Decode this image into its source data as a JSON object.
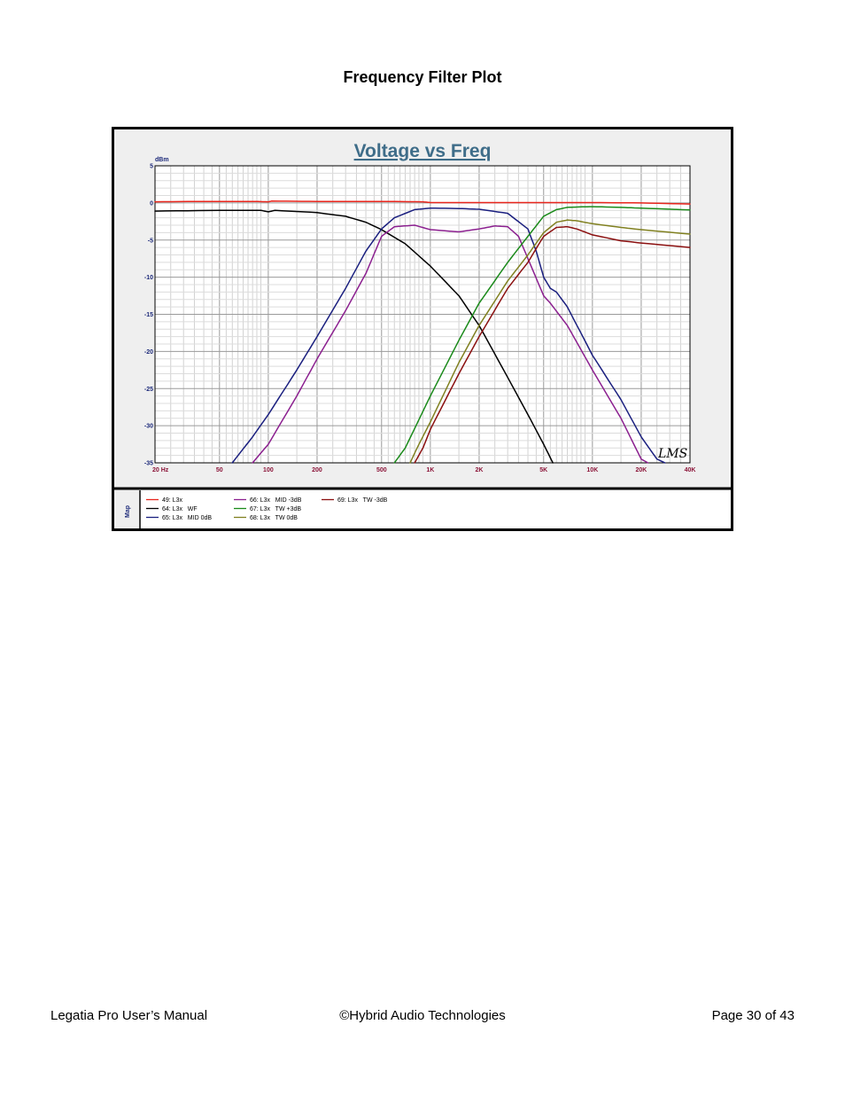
{
  "page": {
    "heading": "Frequency Filter Plot",
    "footer_left": "Legatia Pro User’s Manual",
    "footer_center": "©Hybrid Audio Technologies",
    "footer_right": "Page 30 of 43"
  },
  "chart_data": {
    "type": "line",
    "title": "Voltage vs Freq",
    "ylabel": "dBm",
    "xlabel": "",
    "x_scale": "log",
    "xlim": [
      20,
      40000
    ],
    "ylim": [
      -35,
      5
    ],
    "grid": true,
    "x_ticks": [
      {
        "value": 20,
        "label": "20  Hz"
      },
      {
        "value": 50,
        "label": "50"
      },
      {
        "value": 100,
        "label": "100"
      },
      {
        "value": 200,
        "label": "200"
      },
      {
        "value": 500,
        "label": "500"
      },
      {
        "value": 1000,
        "label": "1K"
      },
      {
        "value": 2000,
        "label": "2K"
      },
      {
        "value": 5000,
        "label": "5K"
      },
      {
        "value": 10000,
        "label": "10K"
      },
      {
        "value": 20000,
        "label": "20K"
      },
      {
        "value": 40000,
        "label": "40K"
      }
    ],
    "y_ticks": [
      5,
      0,
      -5,
      -10,
      -15,
      -20,
      -25,
      -30,
      -35
    ],
    "watermark": "LMS",
    "legend_title": "Map",
    "legend_position": "bottom",
    "series": [
      {
        "name": "49: L3x",
        "color": "#e8251c",
        "x": [
          20,
          40,
          80,
          100,
          105,
          200,
          500,
          900,
          1000,
          2000,
          5000,
          10000,
          20000,
          40000
        ],
        "y": [
          0.15,
          0.2,
          0.2,
          0.15,
          0.25,
          0.2,
          0.2,
          0.15,
          0.05,
          0.05,
          0.05,
          0.05,
          0.0,
          -0.15
        ]
      },
      {
        "name": "64: L3x   WF",
        "color": "#000000",
        "x": [
          20,
          50,
          90,
          100,
          110,
          200,
          300,
          400,
          500,
          700,
          1000,
          1500,
          2000,
          3000,
          4000,
          5000,
          5700
        ],
        "y": [
          -1.1,
          -1.0,
          -1.0,
          -1.2,
          -1.0,
          -1.3,
          -1.8,
          -2.6,
          -3.6,
          -5.5,
          -8.5,
          -12.5,
          -16.5,
          -23.5,
          -28.5,
          -32.5,
          -35
        ]
      },
      {
        "name": "65: L3x   MID 0dB",
        "color": "#1a1f7f",
        "x": [
          60,
          80,
          100,
          150,
          200,
          300,
          400,
          500,
          600,
          800,
          1000,
          1500,
          2000,
          3000,
          4000,
          4500,
          5000,
          5500,
          6000,
          7000,
          10000,
          15000,
          20000,
          25000,
          28000
        ],
        "y": [
          -35,
          -31.5,
          -28.5,
          -22.5,
          -18,
          -11.5,
          -6.5,
          -3.5,
          -2,
          -0.9,
          -0.7,
          -0.75,
          -0.85,
          -1.4,
          -3.5,
          -6.5,
          -10,
          -11.5,
          -12,
          -14,
          -20.5,
          -26.5,
          -31.5,
          -34.5,
          -35
        ]
      },
      {
        "name": "66: L3x   MID -3dB",
        "color": "#8b1f8f",
        "x": [
          80,
          100,
          150,
          200,
          300,
          400,
          500,
          600,
          800,
          1000,
          1500,
          2000,
          2500,
          3000,
          3500,
          4000,
          5000,
          5500,
          7000,
          10000,
          15000,
          20000,
          22000
        ],
        "y": [
          -35,
          -32.5,
          -26,
          -21,
          -14.5,
          -9.5,
          -4.5,
          -3.2,
          -3,
          -3.6,
          -3.9,
          -3.5,
          -3.1,
          -3.2,
          -4.5,
          -7.5,
          -12.5,
          -13.5,
          -16.5,
          -22.5,
          -29,
          -34.5,
          -35
        ]
      },
      {
        "name": "67: L3x   TW +3dB",
        "color": "#1a8a1a",
        "x": [
          600,
          700,
          1000,
          1500,
          2000,
          3000,
          4000,
          5000,
          6000,
          7000,
          8000,
          10000,
          15000,
          20000,
          40000
        ],
        "y": [
          -35,
          -33,
          -26,
          -18.5,
          -13.5,
          -8,
          -4.5,
          -1.8,
          -0.9,
          -0.6,
          -0.55,
          -0.5,
          -0.6,
          -0.7,
          -0.95
        ]
      },
      {
        "name": "68: L3x   TW 0dB",
        "color": "#808020",
        "x": [
          750,
          850,
          1000,
          1500,
          2000,
          3000,
          4000,
          5000,
          6000,
          7000,
          8000,
          10000,
          15000,
          20000,
          40000
        ],
        "y": [
          -35,
          -32.5,
          -29.5,
          -21.5,
          -16.5,
          -10.5,
          -7,
          -4,
          -2.6,
          -2.3,
          -2.4,
          -2.8,
          -3.3,
          -3.6,
          -4.2
        ]
      },
      {
        "name": "69: L3x   TW -3dB",
        "color": "#8b1010",
        "x": [
          800,
          900,
          1000,
          1500,
          2000,
          3000,
          4000,
          5000,
          6000,
          7000,
          8000,
          10000,
          15000,
          20000,
          40000
        ],
        "y": [
          -35,
          -33,
          -30.5,
          -23,
          -18,
          -11.5,
          -8,
          -4.5,
          -3.3,
          -3.2,
          -3.5,
          -4.3,
          -5.1,
          -5.4,
          -6
        ]
      }
    ]
  }
}
